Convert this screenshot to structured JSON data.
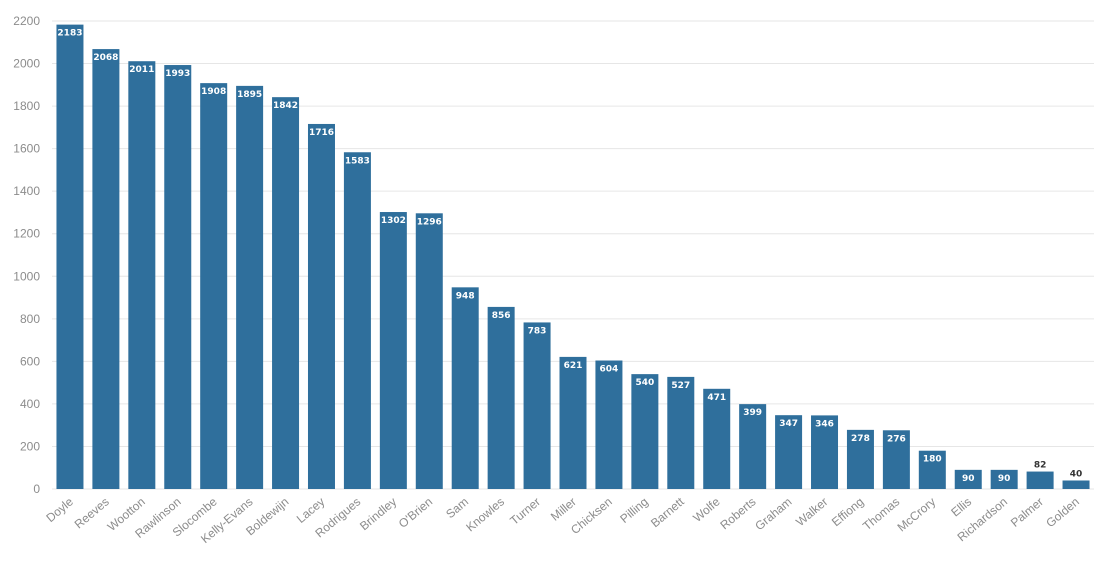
{
  "chart_data": {
    "type": "bar",
    "categories": [
      "Doyle",
      "Reeves",
      "Wootton",
      "Rawlinson",
      "Slocombe",
      "Kelly-Evans",
      "Boldewijn",
      "Lacey",
      "Rodrigues",
      "Brindley",
      "O'Brien",
      "Sam",
      "Knowles",
      "Turner",
      "Miller",
      "Chicksen",
      "Pilling",
      "Barnett",
      "Wolfe",
      "Roberts",
      "Graham",
      "Walker",
      "Effiong",
      "Thomas",
      "McCrory",
      "Ellis",
      "Richardson",
      "Palmer",
      "Golden"
    ],
    "values": [
      2183,
      2068,
      2011,
      1993,
      1908,
      1895,
      1842,
      1716,
      1583,
      1302,
      1296,
      948,
      856,
      783,
      621,
      604,
      540,
      527,
      471,
      399,
      347,
      346,
      278,
      276,
      180,
      90,
      90,
      82,
      40
    ],
    "ylim": [
      0,
      2200
    ],
    "yticks": [
      0,
      200,
      400,
      600,
      800,
      1000,
      1200,
      1400,
      1600,
      1800,
      2000,
      2200
    ],
    "grid": true,
    "legend": "none",
    "bar_color": "#2f6f9c",
    "label_inside_color": "#ffffff",
    "label_outside_color": "#333333",
    "grid_color": "#e6e6e6",
    "tick_color": "#8c8c8c"
  }
}
